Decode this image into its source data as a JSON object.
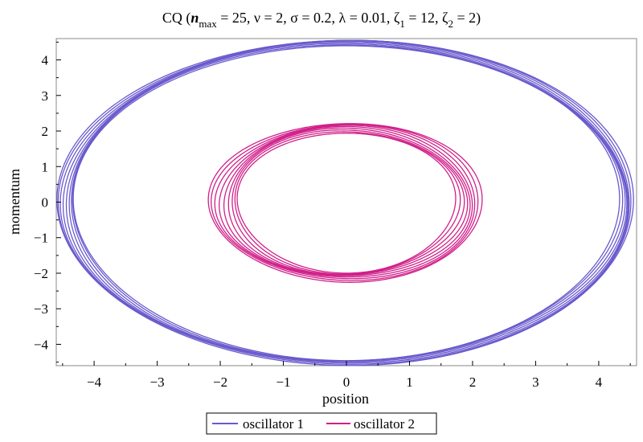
{
  "chart_data": {
    "type": "line",
    "title_parts": {
      "prefix": "CQ  (",
      "n": "n",
      "n_sub": "max",
      "eq1": " = 25, ν = 2, σ = 0.2, λ = 0.01, ζ",
      "z1_sub": "1",
      "eq2": " = 12, ζ",
      "z2_sub": "2",
      "eq3": " = 2)"
    },
    "xlabel": "position",
    "ylabel": "momentum",
    "xlim": [
      -4.6,
      4.6
    ],
    "ylim": [
      -4.6,
      4.6
    ],
    "x_ticks": [
      -4,
      -3,
      -2,
      -1,
      0,
      1,
      2,
      3,
      4
    ],
    "y_ticks": [
      4,
      3,
      2,
      1,
      0,
      -1,
      -2,
      -3,
      -4
    ],
    "x_tick_labels": [
      "−4",
      "−3",
      "−2",
      "−1",
      "0",
      "1",
      "2",
      "3",
      "4"
    ],
    "y_tick_labels": [
      "4",
      "3",
      "2",
      "1",
      "0",
      "−1",
      "−2",
      "−3",
      "−4"
    ],
    "grid": false,
    "legend_position": "bottom-center",
    "series": [
      {
        "name": "oscillator 1",
        "color": "#6a5acd",
        "shape": "ellipse",
        "x_radius": 4.45,
        "y_radius": 4.5,
        "band_width": 0.12
      },
      {
        "name": "oscillator 2",
        "color": "#d0208a",
        "shape": "ellipse",
        "x_radius": 1.95,
        "y_radius": 2.1,
        "band_width": 0.22
      }
    ]
  }
}
